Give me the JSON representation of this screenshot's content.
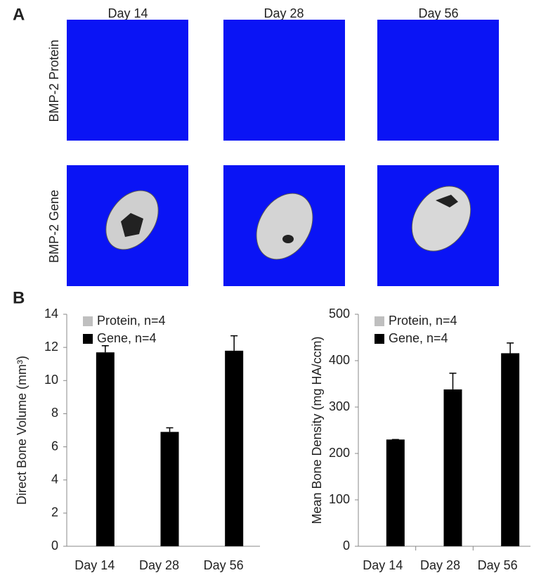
{
  "panel_a": {
    "label": "A",
    "columns": [
      "Day 14",
      "Day 28",
      "Day 56"
    ],
    "rows": [
      "BMP-2 Protein",
      "BMP-2 Gene"
    ]
  },
  "panel_b": {
    "label": "B"
  },
  "chart_data": [
    {
      "type": "bar",
      "y_label": "Direct Bone Volume (mm³)",
      "categories": [
        "Day 14",
        "Day 28",
        "Day 56"
      ],
      "series": [
        {
          "name": "Protein, n=4",
          "color": "#bfbfbf",
          "values": [
            0,
            0,
            0
          ]
        },
        {
          "name": "Gene, n=4",
          "color": "#000000",
          "values": [
            11.7,
            6.9,
            11.8
          ],
          "errors": [
            0.4,
            0.25,
            0.9
          ]
        }
      ],
      "ylim": [
        0,
        14
      ],
      "yticks": [
        0,
        2,
        4,
        6,
        8,
        10,
        12,
        14
      ],
      "legend": "upper-left"
    },
    {
      "type": "bar",
      "y_label": "Mean Bone Density (mg HA/ccm)",
      "categories": [
        "Day 14",
        "Day 28",
        "Day 56"
      ],
      "series": [
        {
          "name": "Protein, n=4",
          "color": "#bfbfbf",
          "values": [
            0,
            0,
            0
          ]
        },
        {
          "name": "Gene, n=4",
          "color": "#000000",
          "values": [
            230,
            338,
            416
          ],
          "errors": [
            0,
            35,
            22
          ]
        }
      ],
      "ylim": [
        0,
        500
      ],
      "yticks": [
        0,
        100,
        200,
        300,
        400,
        500
      ],
      "legend": "upper-left"
    }
  ]
}
